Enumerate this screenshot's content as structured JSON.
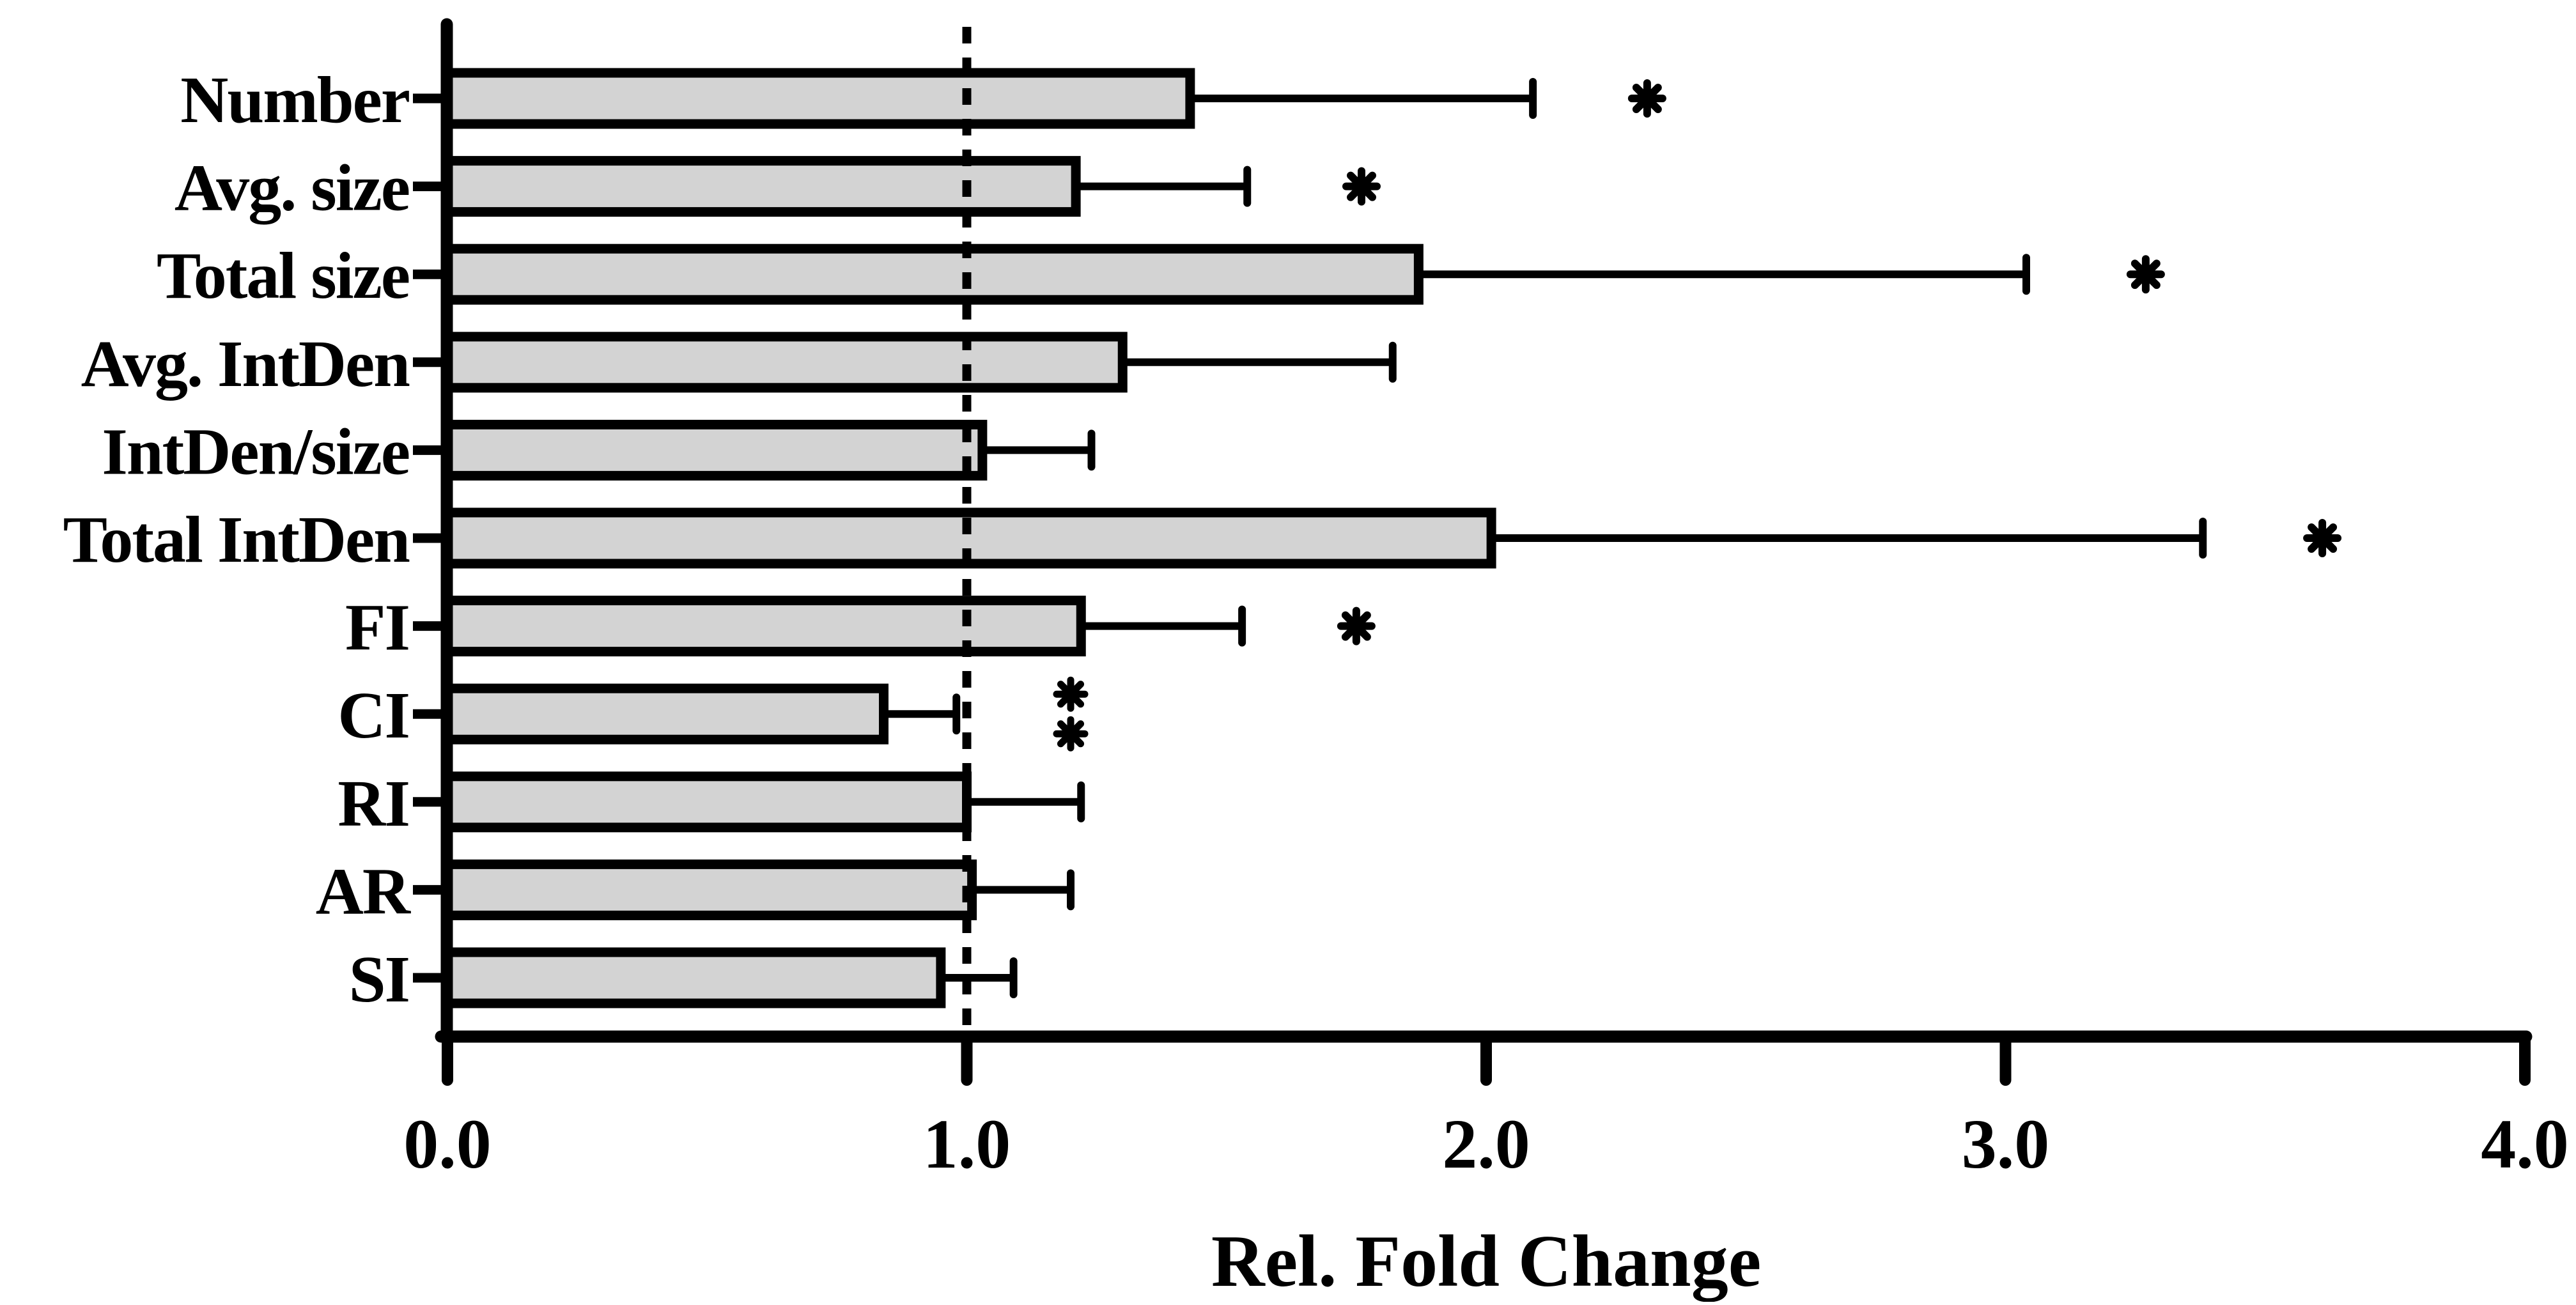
{
  "chart_data": {
    "type": "bar",
    "orientation": "horizontal",
    "title": "",
    "xlabel": "Rel. Fold Change",
    "ylabel": "",
    "categories": [
      "Number",
      "Avg. size",
      "Total size",
      "Avg. IntDen",
      "IntDen/size",
      "Total IntDen",
      "FI",
      "CI",
      "RI",
      "AR",
      "SI"
    ],
    "values": [
      1.43,
      1.21,
      1.87,
      1.3,
      1.03,
      2.01,
      1.22,
      0.84,
      1.0,
      1.01,
      0.95
    ],
    "error_upper_to": [
      2.09,
      1.54,
      3.04,
      1.82,
      1.24,
      3.38,
      1.53,
      0.98,
      1.22,
      1.2,
      1.09
    ],
    "significance": [
      "*",
      "*",
      "*",
      "",
      "",
      "*",
      "*",
      "**",
      "",
      "",
      ""
    ],
    "significance_x": [
      2.31,
      1.76,
      3.27,
      0,
      0,
      3.61,
      1.75,
      1.2,
      0,
      0,
      0
    ],
    "reference_line_x": 1.0,
    "xlim": [
      0.0,
      4.0
    ],
    "xticks": [
      "0.0",
      "1.0",
      "2.0",
      "3.0",
      "4.0"
    ],
    "grid": false,
    "legend": null,
    "bar_fill": "#d3d3d3",
    "bar_outline": "#000000",
    "axis_color": "#000000",
    "background": "#ffffff"
  }
}
